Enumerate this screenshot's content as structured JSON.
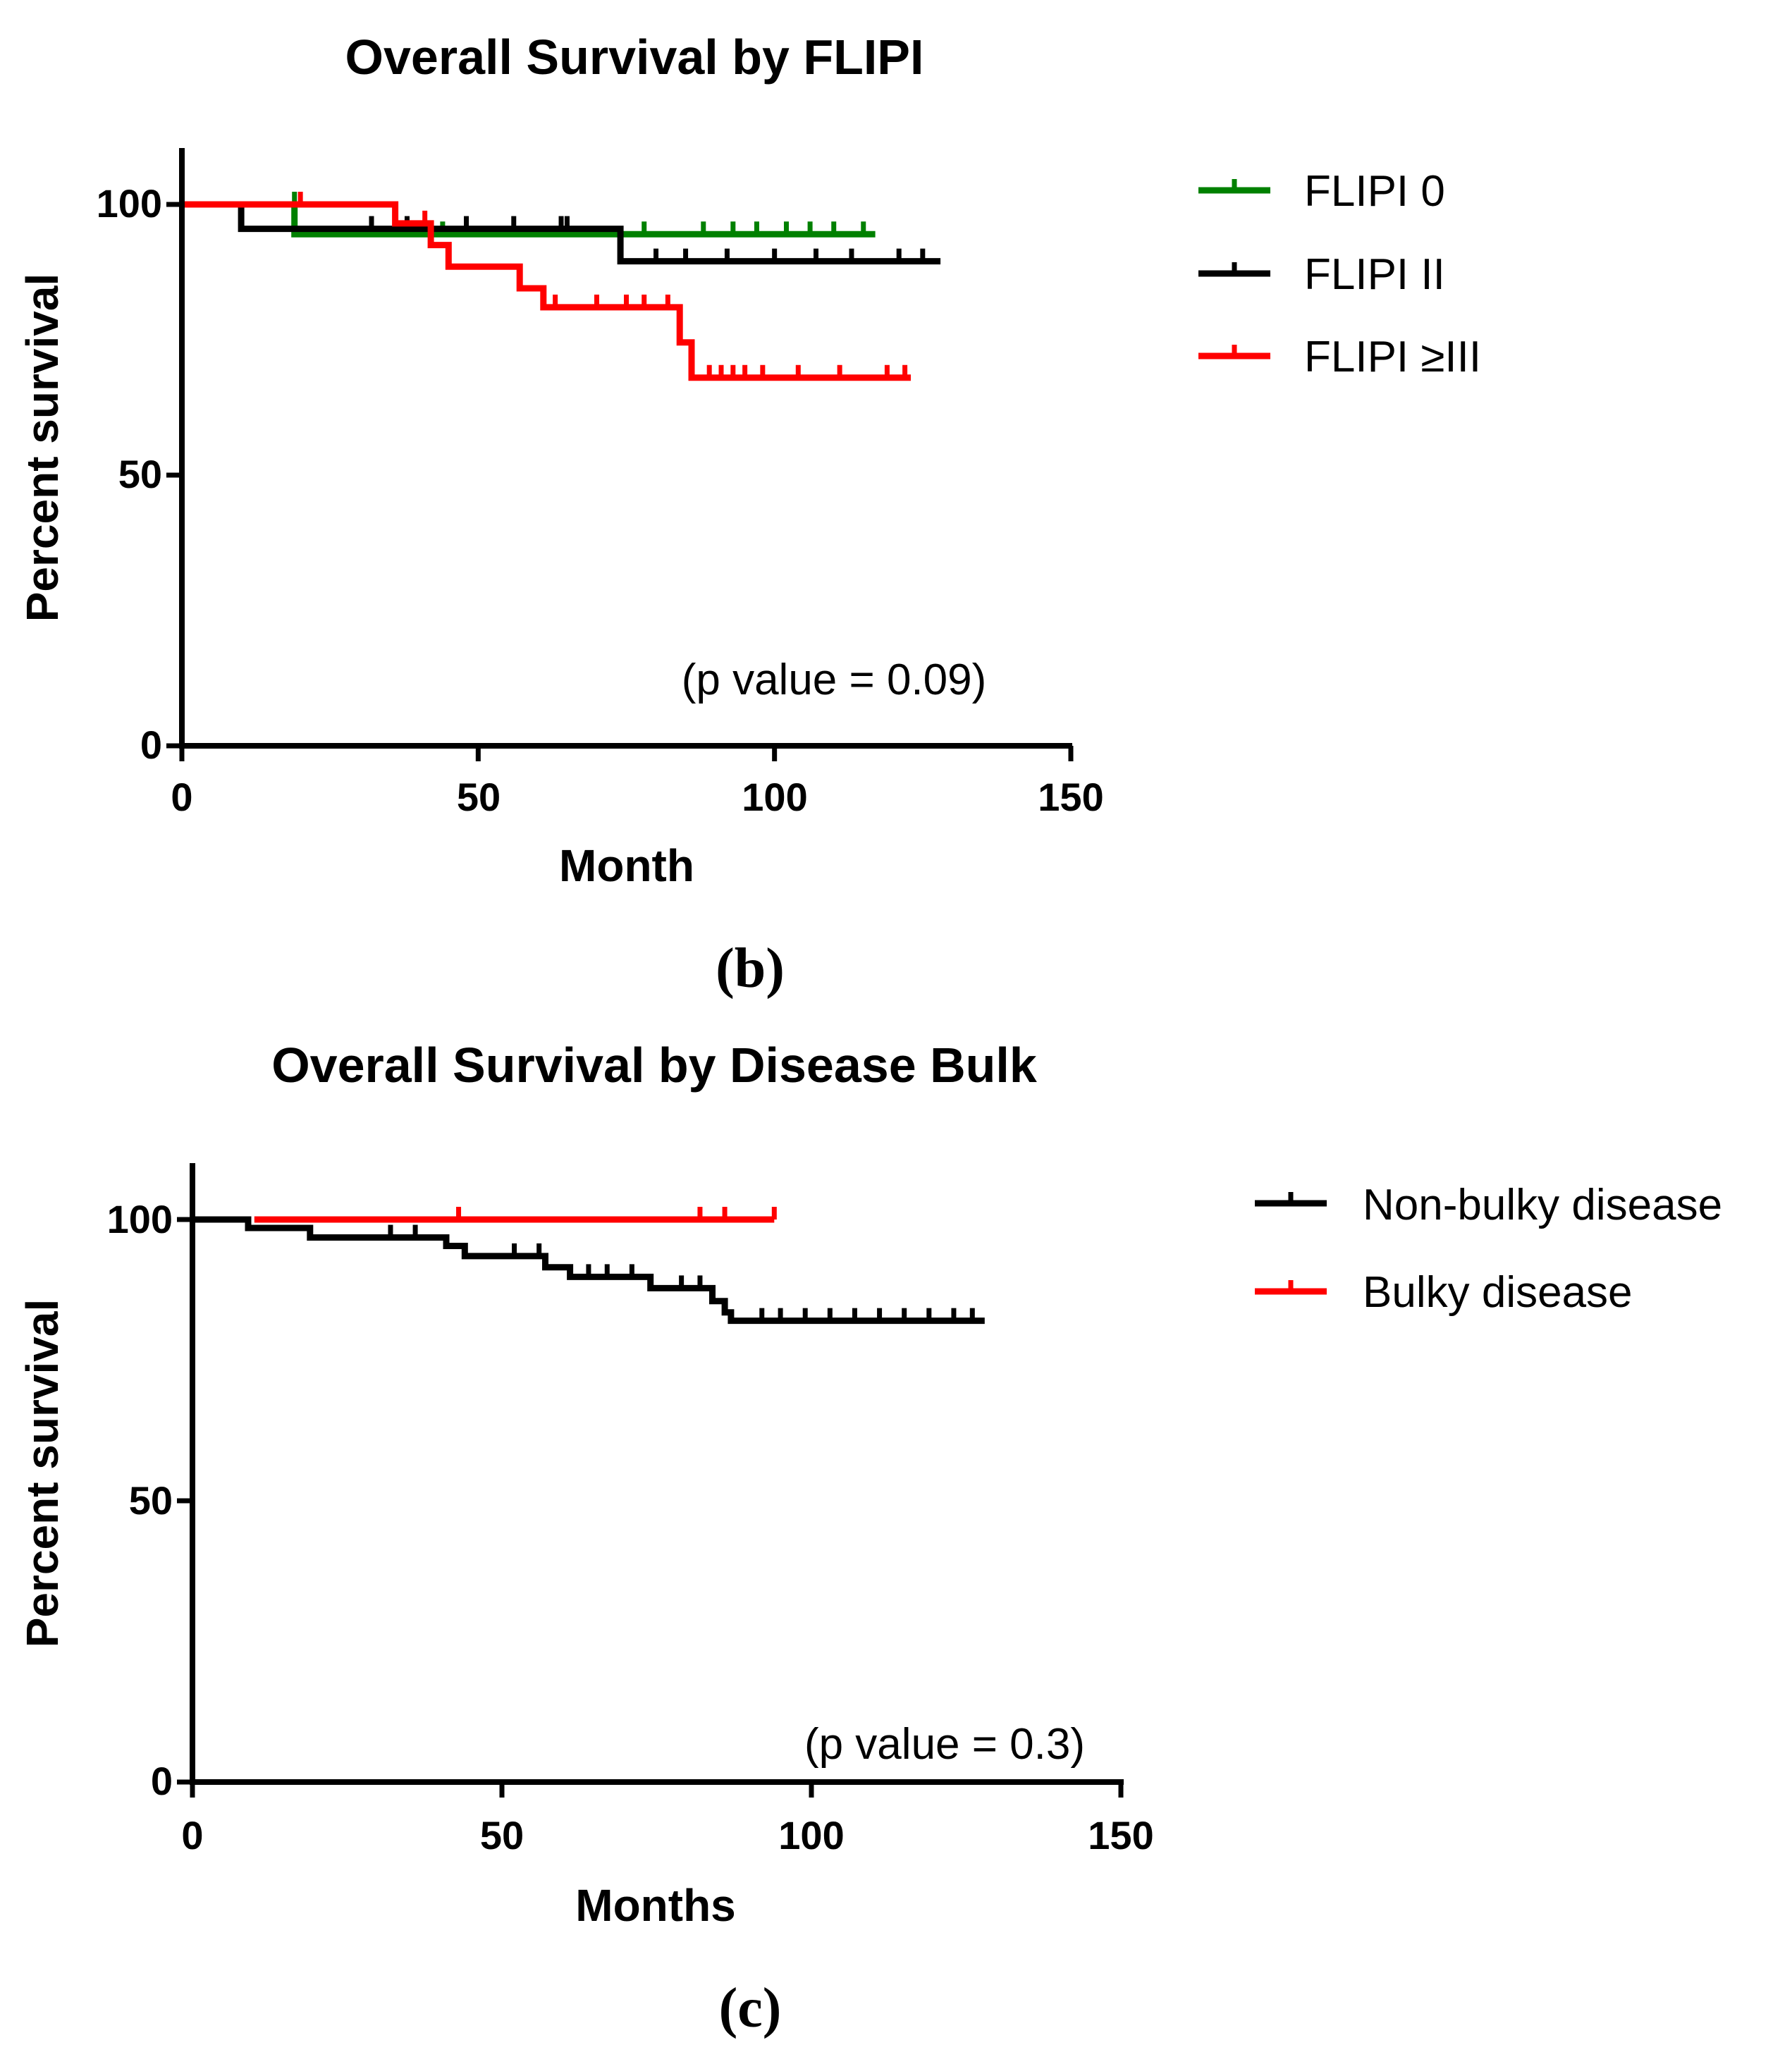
{
  "chart_data": [
    {
      "type": "line",
      "title": "Overall Survival by FLIPI",
      "xlabel": "Month",
      "ylabel": "Percent survival",
      "xlim": [
        0,
        150
      ],
      "ylim": [
        0,
        110
      ],
      "xticks": [
        "0",
        "50",
        "100",
        "150"
      ],
      "yticks": [
        "0",
        "50",
        "100"
      ],
      "annotation": "(p value = 0.09)",
      "panel_label": "(b)",
      "legend_position": "right",
      "series": [
        {
          "name": "FLIPI 0",
          "color": "#008000",
          "steps": [
            [
              0,
              100
            ],
            [
              19,
              100
            ],
            [
              19,
              94.5
            ],
            [
              117,
              94.5
            ]
          ],
          "censors": [
            [
              19,
              100
            ],
            [
              44,
              94.5
            ],
            [
              64,
              94.5
            ],
            [
              78,
              94.5
            ],
            [
              88,
              94.5
            ],
            [
              93,
              94.5
            ],
            [
              97,
              94.5
            ],
            [
              102,
              94.5
            ],
            [
              106,
              94.5
            ],
            [
              110,
              94.5
            ],
            [
              115,
              94.5
            ]
          ]
        },
        {
          "name": "FLIPI II",
          "color": "#000000",
          "steps": [
            [
              0,
              100
            ],
            [
              10,
              100
            ],
            [
              10,
              95.5
            ],
            [
              74,
              95.5
            ],
            [
              74,
              89.5
            ],
            [
              128,
              89.5
            ]
          ],
          "censors": [
            [
              32,
              95.5
            ],
            [
              38,
              95.5
            ],
            [
              48,
              95.5
            ],
            [
              56,
              95.5
            ],
            [
              64,
              95.5
            ],
            [
              65,
              95.5
            ],
            [
              80,
              89.5
            ],
            [
              85,
              89.5
            ],
            [
              92,
              89.5
            ],
            [
              100,
              89.5
            ],
            [
              107,
              89.5
            ],
            [
              113,
              89.5
            ],
            [
              121,
              89.5
            ],
            [
              125,
              89.5
            ]
          ]
        },
        {
          "name": "FLIPI ≥III",
          "color": "#ff0000",
          "steps": [
            [
              0,
              100
            ],
            [
              36,
              100
            ],
            [
              36,
              96.5
            ],
            [
              42,
              96.5
            ],
            [
              42,
              92.5
            ],
            [
              45,
              92.5
            ],
            [
              45,
              88.5
            ],
            [
              57,
              88.5
            ],
            [
              57,
              84.5
            ],
            [
              61,
              84.5
            ],
            [
              61,
              81
            ],
            [
              84,
              81
            ],
            [
              84,
              74.5
            ],
            [
              86,
              74.5
            ],
            [
              86,
              68
            ],
            [
              123,
              68
            ]
          ],
          "censors": [
            [
              20,
              100
            ],
            [
              41,
              96.5
            ],
            [
              63,
              81
            ],
            [
              70,
              81
            ],
            [
              75,
              81
            ],
            [
              78,
              81
            ],
            [
              82,
              81
            ],
            [
              89,
              68
            ],
            [
              91,
              68
            ],
            [
              93,
              68
            ],
            [
              95,
              68
            ],
            [
              98,
              68
            ],
            [
              104,
              68
            ],
            [
              111,
              68
            ],
            [
              119,
              68
            ],
            [
              122,
              68
            ]
          ]
        }
      ]
    },
    {
      "type": "line",
      "title": "Overall Survival by Disease Bulk",
      "xlabel": "Months",
      "ylabel": "Percent survival",
      "xlim": [
        0,
        150
      ],
      "ylim": [
        0,
        100
      ],
      "xticks": [
        "0",
        "50",
        "100",
        "150"
      ],
      "yticks": [
        "0",
        "50",
        "100"
      ],
      "annotation": "(p value = 0.3)",
      "panel_label": "(c)",
      "legend_position": "right",
      "series": [
        {
          "name": "Non-bulky disease",
          "color": "#000000",
          "steps": [
            [
              0,
              100
            ],
            [
              9,
              100
            ],
            [
              9,
              98.5
            ],
            [
              19,
              98.5
            ],
            [
              19,
              96.8
            ],
            [
              41,
              96.8
            ],
            [
              41,
              95.3
            ],
            [
              44,
              95.3
            ],
            [
              44,
              93.5
            ],
            [
              57,
              93.5
            ],
            [
              57,
              91.5
            ],
            [
              61,
              91.5
            ],
            [
              61,
              89.8
            ],
            [
              74,
              89.8
            ],
            [
              74,
              87.8
            ],
            [
              84,
              87.8
            ],
            [
              84,
              85.5
            ],
            [
              86,
              85.5
            ],
            [
              86,
              83.5
            ],
            [
              87,
              83.5
            ],
            [
              87,
              82
            ],
            [
              128,
              82
            ]
          ],
          "censors": [
            [
              32,
              96.8
            ],
            [
              36,
              96.8
            ],
            [
              52,
              93.5
            ],
            [
              56,
              93.5
            ],
            [
              64,
              89.8
            ],
            [
              67,
              89.8
            ],
            [
              71,
              89.8
            ],
            [
              79,
              87.8
            ],
            [
              82,
              87.8
            ],
            [
              92,
              82
            ],
            [
              95,
              82
            ],
            [
              99,
              82
            ],
            [
              103,
              82
            ],
            [
              107,
              82
            ],
            [
              111,
              82
            ],
            [
              115,
              82
            ],
            [
              119,
              82
            ],
            [
              123,
              82
            ],
            [
              126,
              82
            ]
          ]
        },
        {
          "name": "Bulky disease",
          "color": "#ff0000",
          "steps": [
            [
              10,
              100
            ],
            [
              94,
              100
            ]
          ],
          "censors": [
            [
              43,
              100
            ],
            [
              82,
              100
            ],
            [
              86,
              100
            ],
            [
              94,
              100
            ]
          ]
        }
      ]
    }
  ]
}
